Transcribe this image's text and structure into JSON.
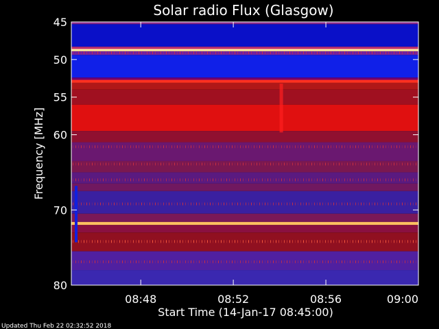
{
  "chart_data": {
    "type": "heatmap",
    "title": "Solar radio Flux (Glasgow)",
    "ylabel": "Frequency [MHz]",
    "xlabel": "Start Time (14-Jan-17 08:45:00)",
    "ylim": [
      45,
      80
    ],
    "y_ticks": [
      "45",
      "50",
      "55",
      "60",
      "70",
      "80"
    ],
    "y_tick_values": [
      45,
      50,
      55,
      60,
      70,
      80
    ],
    "x_ticks": [
      "08:48",
      "08:52",
      "08:56",
      "09:00"
    ],
    "x_tick_values": [
      3,
      7,
      11,
      15
    ],
    "xlim": [
      0,
      15
    ],
    "colors": {
      "background": "#000000",
      "band_blue": "#0a0fd0",
      "band_red": "#e01010",
      "band_purple": "#6a1a90",
      "band_hot": "#ffd060"
    },
    "bands": [
      {
        "from": 45.0,
        "to": 45.3,
        "color": "#8a2a8a"
      },
      {
        "from": 45.3,
        "to": 48.3,
        "color": "#0a10c8"
      },
      {
        "from": 48.3,
        "to": 48.6,
        "color": "#c03070"
      },
      {
        "from": 48.6,
        "to": 48.9,
        "color": "#fff0a0"
      },
      {
        "from": 48.9,
        "to": 49.4,
        "color": "#7020a0"
      },
      {
        "from": 49.4,
        "to": 52.4,
        "color": "#1020e8"
      },
      {
        "from": 52.4,
        "to": 52.7,
        "color": "#700070"
      },
      {
        "from": 52.7,
        "to": 53.1,
        "color": "#ff3020"
      },
      {
        "from": 53.1,
        "to": 54.0,
        "color": "#b01818"
      },
      {
        "from": 54.0,
        "to": 56.0,
        "color": "#a01020"
      },
      {
        "from": 56.0,
        "to": 59.5,
        "color": "#e01010"
      },
      {
        "from": 59.5,
        "to": 61.0,
        "color": "#901030"
      },
      {
        "from": 61.0,
        "to": 63.5,
        "color": "#6a1870"
      },
      {
        "from": 63.5,
        "to": 65.0,
        "color": "#7a1850"
      },
      {
        "from": 65.0,
        "to": 66.5,
        "color": "#5a1a80"
      },
      {
        "from": 66.5,
        "to": 67.5,
        "color": "#701860"
      },
      {
        "from": 67.5,
        "to": 70.5,
        "color": "#3a20a0"
      },
      {
        "from": 70.5,
        "to": 71.6,
        "color": "#7a1858"
      },
      {
        "from": 71.6,
        "to": 72.0,
        "color": "#ffc060"
      },
      {
        "from": 72.0,
        "to": 73.0,
        "color": "#8a1040"
      },
      {
        "from": 73.0,
        "to": 75.5,
        "color": "#901020"
      },
      {
        "from": 75.5,
        "to": 78.0,
        "color": "#5020a0"
      },
      {
        "from": 78.0,
        "to": 80.0,
        "color": "#3a28b0"
      }
    ]
  },
  "footer": {
    "updated": "Updated Thu Feb 22 02:32:52 2018"
  }
}
